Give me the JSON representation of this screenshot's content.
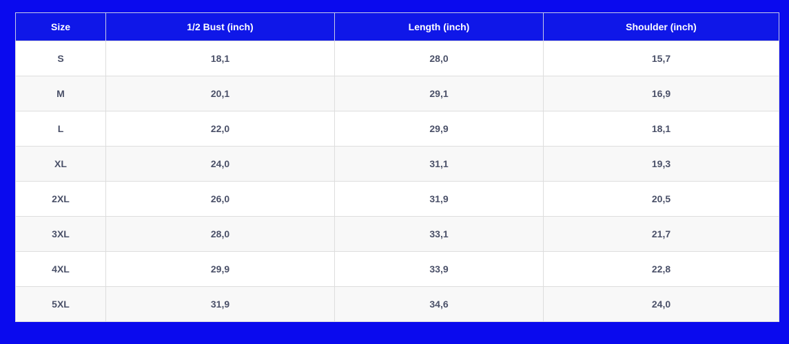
{
  "table": {
    "headers": [
      "Size",
      "1/2 Bust (inch)",
      "Length (inch)",
      "Shoulder (inch)"
    ],
    "rows": [
      [
        "S",
        "18,1",
        "28,0",
        "15,7"
      ],
      [
        "M",
        "20,1",
        "29,1",
        "16,9"
      ],
      [
        "L",
        "22,0",
        "29,9",
        "18,1"
      ],
      [
        "XL",
        "24,0",
        "31,1",
        "19,3"
      ],
      [
        "2XL",
        "26,0",
        "31,9",
        "20,5"
      ],
      [
        "3XL",
        "28,0",
        "33,1",
        "21,7"
      ],
      [
        "4XL",
        "29,9",
        "33,9",
        "22,8"
      ],
      [
        "5XL",
        "31,9",
        "34,6",
        "24,0"
      ]
    ]
  },
  "colors": {
    "background": "#0a0aee",
    "header_background": "#0f17e8",
    "header_text": "#ffffff",
    "cell_text": "#4a5068",
    "row_alt": "#f8f8f8"
  }
}
